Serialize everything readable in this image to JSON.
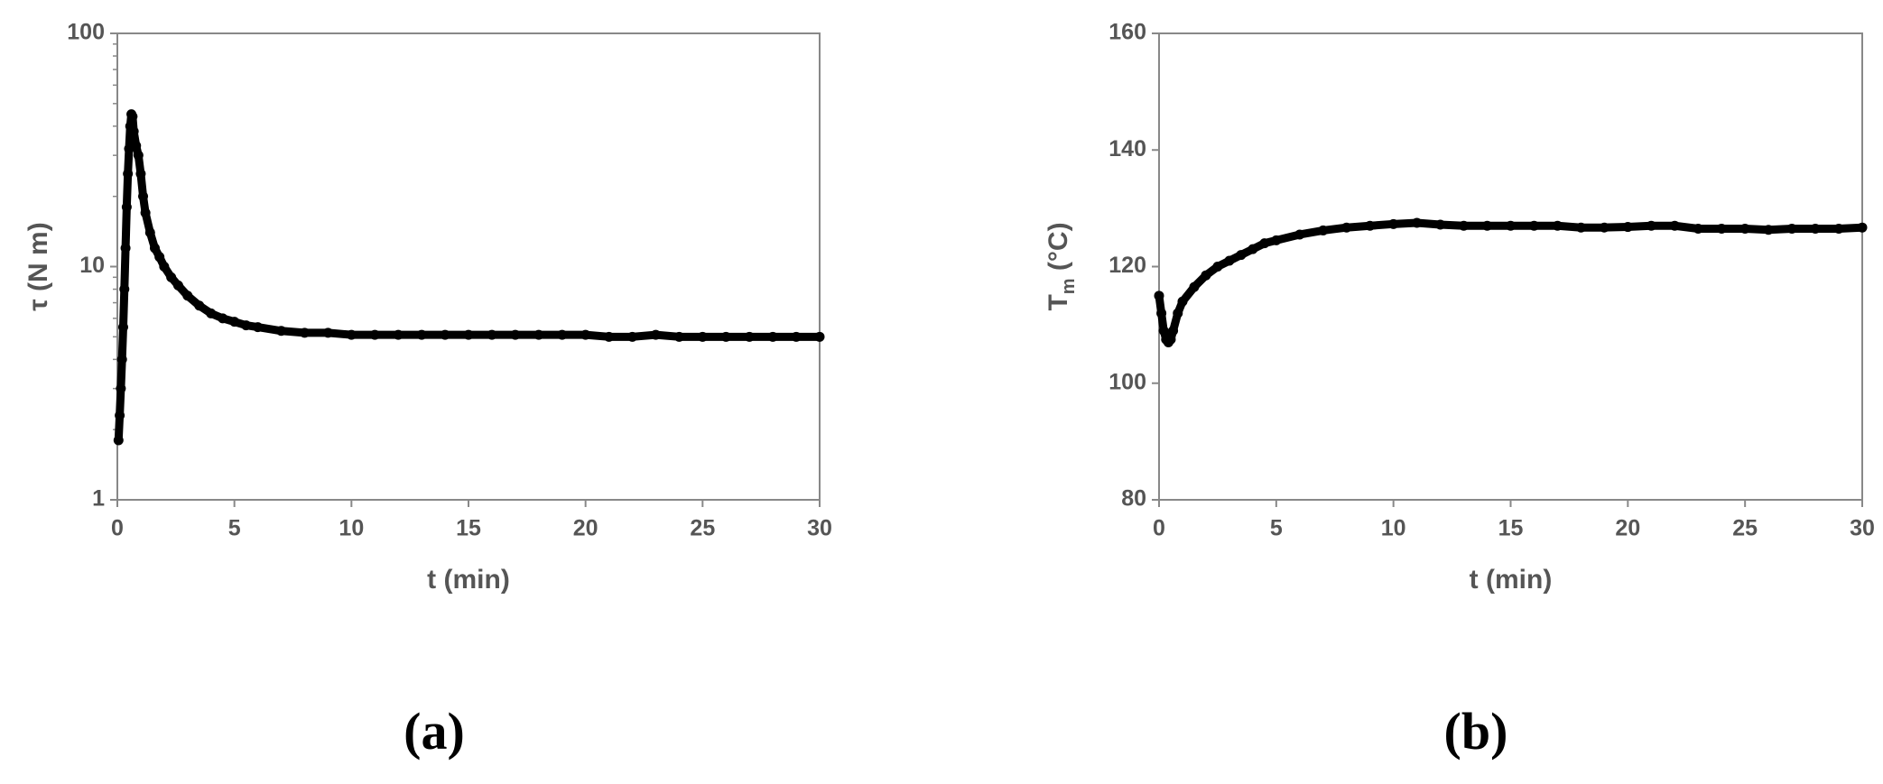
{
  "chart_data": [
    {
      "type": "scatter",
      "panel_label": "(a)",
      "xlabel": "t (min)",
      "ylabel": "τ (N m)",
      "log_y": true,
      "color": "#000000",
      "xlim": [
        0,
        30
      ],
      "xticks": [
        0,
        5,
        10,
        15,
        20,
        25,
        30
      ],
      "ylim": [
        1,
        100
      ],
      "yticks": [
        1,
        10,
        100
      ],
      "x": [
        0.05,
        0.1,
        0.15,
        0.2,
        0.25,
        0.3,
        0.35,
        0.4,
        0.45,
        0.5,
        0.55,
        0.6,
        0.65,
        0.7,
        0.8,
        0.9,
        1.0,
        1.1,
        1.2,
        1.4,
        1.6,
        1.8,
        2.0,
        2.3,
        2.6,
        3.0,
        3.5,
        4.0,
        4.5,
        5,
        5.5,
        6,
        7,
        8,
        9,
        10,
        11,
        12,
        13,
        14,
        15,
        16,
        17,
        18,
        19,
        20,
        21,
        22,
        23,
        24,
        25,
        26,
        27,
        28,
        29,
        30
      ],
      "values": [
        1.8,
        2.3,
        3,
        4,
        5.5,
        8,
        12,
        18,
        25,
        32,
        40,
        45,
        44,
        38,
        33,
        30,
        25,
        20,
        17,
        14,
        12,
        11,
        10,
        9,
        8.3,
        7.5,
        6.8,
        6.3,
        6.0,
        5.8,
        5.6,
        5.5,
        5.3,
        5.2,
        5.2,
        5.1,
        5.1,
        5.1,
        5.1,
        5.1,
        5.1,
        5.1,
        5.1,
        5.1,
        5.1,
        5.1,
        5.0,
        5.0,
        5.1,
        5.0,
        5.0,
        5.0,
        5.0,
        5.0,
        5.0,
        5.0
      ]
    },
    {
      "type": "scatter",
      "panel_label": "(b)",
      "xlabel": "t (min)",
      "ylabel": [
        "T",
        "m",
        " (°C)"
      ],
      "log_y": false,
      "color": "#000000",
      "xlim": [
        0,
        30
      ],
      "xticks": [
        0,
        5,
        10,
        15,
        20,
        25,
        30
      ],
      "ylim": [
        80,
        160
      ],
      "yticks": [
        80,
        100,
        120,
        140,
        160
      ],
      "x": [
        0,
        0.1,
        0.2,
        0.3,
        0.4,
        0.5,
        0.6,
        0.8,
        1,
        1.5,
        2,
        2.5,
        3,
        3.5,
        4,
        4.5,
        5,
        6,
        7,
        8,
        9,
        10,
        11,
        12,
        13,
        14,
        15,
        16,
        17,
        18,
        19,
        20,
        21,
        22,
        23,
        24,
        25,
        26,
        27,
        28,
        29,
        30
      ],
      "values": [
        115,
        112,
        109,
        107.5,
        107,
        107.5,
        109,
        112,
        114,
        116.5,
        118.5,
        120,
        121,
        122,
        123,
        124,
        124.5,
        125.5,
        126.2,
        126.7,
        127,
        127.3,
        127.5,
        127.2,
        127,
        127,
        127,
        127,
        127,
        126.7,
        126.7,
        126.8,
        127,
        127,
        126.5,
        126.5,
        126.5,
        126.3,
        126.5,
        126.5,
        126.5,
        126.7
      ]
    }
  ]
}
